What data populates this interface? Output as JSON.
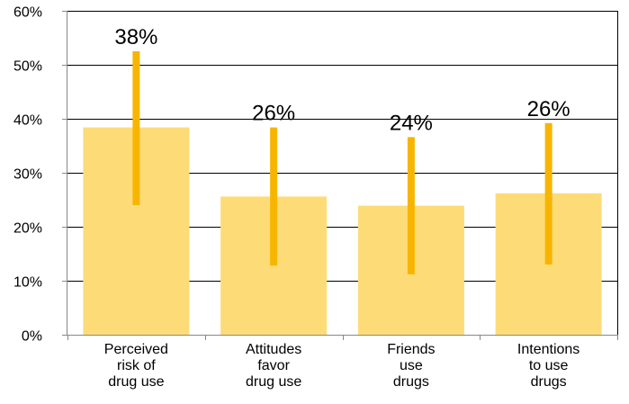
{
  "chart_data": {
    "type": "bar",
    "categories": [
      [
        "Perceived",
        "risk of",
        "drug use"
      ],
      [
        "Attitudes",
        "favor",
        "drug use"
      ],
      [
        "Friends",
        "use",
        "drugs"
      ],
      [
        "Intentions",
        "to use",
        "drugs"
      ]
    ],
    "values": [
      38.4,
      25.6,
      23.9,
      26.2
    ],
    "data_labels": [
      "38%",
      "26%",
      "24%",
      "26%"
    ],
    "error_bars": [
      {
        "low": 24,
        "high": 52.5
      },
      {
        "low": 12.8,
        "high": 38.4
      },
      {
        "low": 11.2,
        "high": 36.6
      },
      {
        "low": 13,
        "high": 39.2
      }
    ],
    "ylim": [
      0,
      60
    ],
    "yticks": [
      0,
      10,
      20,
      30,
      40,
      50,
      60
    ],
    "ytick_labels": [
      "0%",
      "10%",
      "20%",
      "30%",
      "40%",
      "50%",
      "60%"
    ],
    "grid": true,
    "colors": {
      "bar": "#FDDC78",
      "error_bar": "#F7B500",
      "grid": "#000000",
      "axis": "#888888",
      "text": "#000000"
    }
  }
}
